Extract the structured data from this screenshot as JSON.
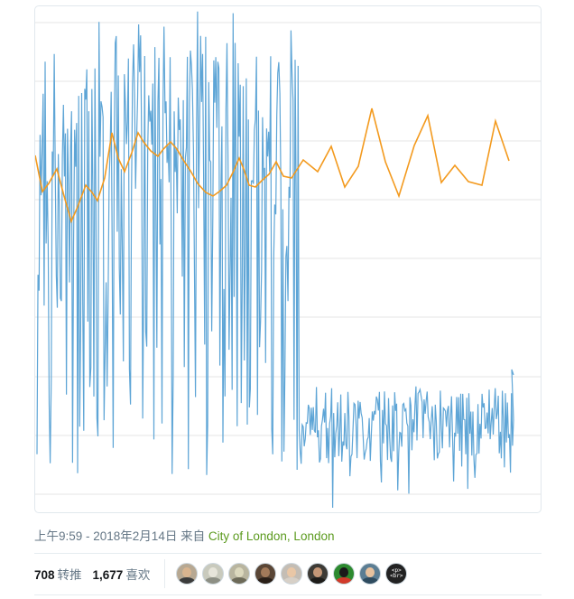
{
  "tweet": {
    "timestamp": "上午9:59 - 2018年2月14日",
    "from_label": "来自",
    "location": "City of London, London"
  },
  "stats": {
    "retweets_count": "708",
    "retweets_label": "转推",
    "likes_count": "1,677",
    "likes_label": "喜欢"
  },
  "likers": [
    {
      "icon": "avatar-person",
      "bg": "#b7a892",
      "skin": "#d9b48f",
      "cloth": "#3b3b3b"
    },
    {
      "icon": "avatar-ornament",
      "bg": "#c9cabd",
      "skin": "#e7e5da",
      "cloth": "#8d8f84"
    },
    {
      "icon": "avatar-sticker",
      "bg": "#b9b59f",
      "skin": "#dcd8bd",
      "cloth": "#6d6a58"
    },
    {
      "icon": "avatar-person",
      "bg": "#5a4636",
      "skin": "#a37a5a",
      "cloth": "#2a1f18"
    },
    {
      "icon": "avatar-person",
      "bg": "#c4bdb4",
      "skin": "#e9c7a6",
      "cloth": "#d7d0c7"
    },
    {
      "icon": "avatar-person",
      "bg": "#3d3a35",
      "skin": "#c59777",
      "cloth": "#1e1c19"
    },
    {
      "icon": "avatar-cat",
      "bg": "#2d8a2f",
      "skin": "#1a1a1a",
      "cloth": "#d23a2a"
    },
    {
      "icon": "avatar-person",
      "bg": "#5b7d93",
      "skin": "#e6c19e",
      "cloth": "#2e4b5f"
    },
    {
      "icon": "avatar-code",
      "bg": "#222222",
      "glyph": "<p>\n<br>"
    }
  ],
  "chart_data": {
    "type": "line",
    "grid": "horizontal",
    "series": [
      {
        "color": "#5ea5d6",
        "values": []
      },
      {
        "color": "#f39a1e",
        "values": []
      }
    ]
  }
}
